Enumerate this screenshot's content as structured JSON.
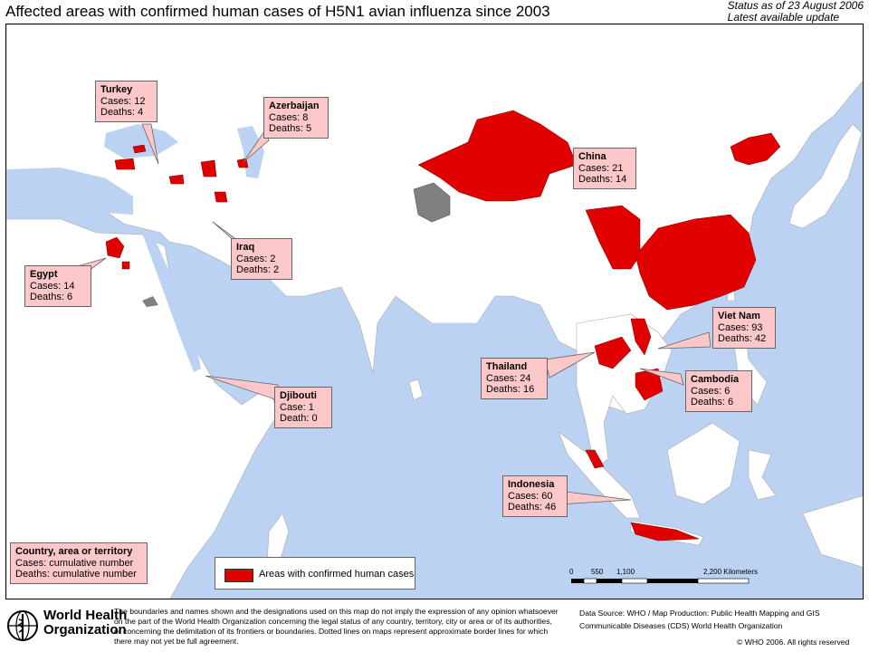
{
  "header": {
    "title": "Affected areas with confirmed human cases of H5N1 avian influenza since 2003",
    "status_line1": "Status as of 23 August 2006",
    "status_line2": "Latest available update"
  },
  "colors": {
    "sea": "#bcd2f3",
    "land": "#ffffff",
    "affected": "#e00000",
    "disputed": "#808080",
    "callout_bg": "#fbc7c9"
  },
  "callouts": [
    {
      "name": "Turkey",
      "cases": "Cases: 12",
      "deaths": "Deaths: 4"
    },
    {
      "name": "Azerbaijan",
      "cases": "Cases: 8",
      "deaths": "Deaths: 5"
    },
    {
      "name": "China",
      "cases": "Cases: 21",
      "deaths": "Deaths: 14"
    },
    {
      "name": "Iraq",
      "cases": "Cases: 2",
      "deaths": "Deaths: 2"
    },
    {
      "name": "Egypt",
      "cases": "Cases: 14",
      "deaths": "Deaths: 6"
    },
    {
      "name": "Viet Nam",
      "cases": "Cases: 93",
      "deaths": "Deaths: 42"
    },
    {
      "name": "Thailand",
      "cases": "Cases: 24",
      "deaths": "Deaths: 16"
    },
    {
      "name": "Cambodia",
      "cases": "Cases: 6",
      "deaths": "Deaths: 6"
    },
    {
      "name": "Djibouti",
      "cases": "Case: 1",
      "deaths": "Death: 0"
    },
    {
      "name": "Indonesia",
      "cases": "Cases: 60",
      "deaths": "Deaths: 46"
    }
  ],
  "key_note": {
    "title": "Country, area or territory",
    "line1": "Cases: cumulative number",
    "line2": "Deaths: cumulative number"
  },
  "legend": {
    "label": "Areas with confirmed human cases"
  },
  "scale_bar": {
    "ticks": [
      "0",
      "550",
      "1,100",
      "2,200 Kilometers"
    ]
  },
  "footer": {
    "org_line1": "World Health",
    "org_line2": "Organization",
    "disclaimer_1": "The boundaries and names shown and the designations used on this map do not imply the expression of any opinion whatsoever",
    "disclaimer_2": "on the part of the World Health Organization concerning the legal status of any country, territory, city or area or of its authorities,",
    "disclaimer_3": "or concerning the delimitation of its frontiers or boundaries.  Dotted lines on maps represent approximate border lines for which there may not yet be full agreement.",
    "source_1": "Data Source: WHO / Map Production: Public Health Mapping and GIS",
    "source_2": "Communicable Diseases (CDS) World Health Organization",
    "copyright": "© WHO 2006. All rights reserved"
  }
}
